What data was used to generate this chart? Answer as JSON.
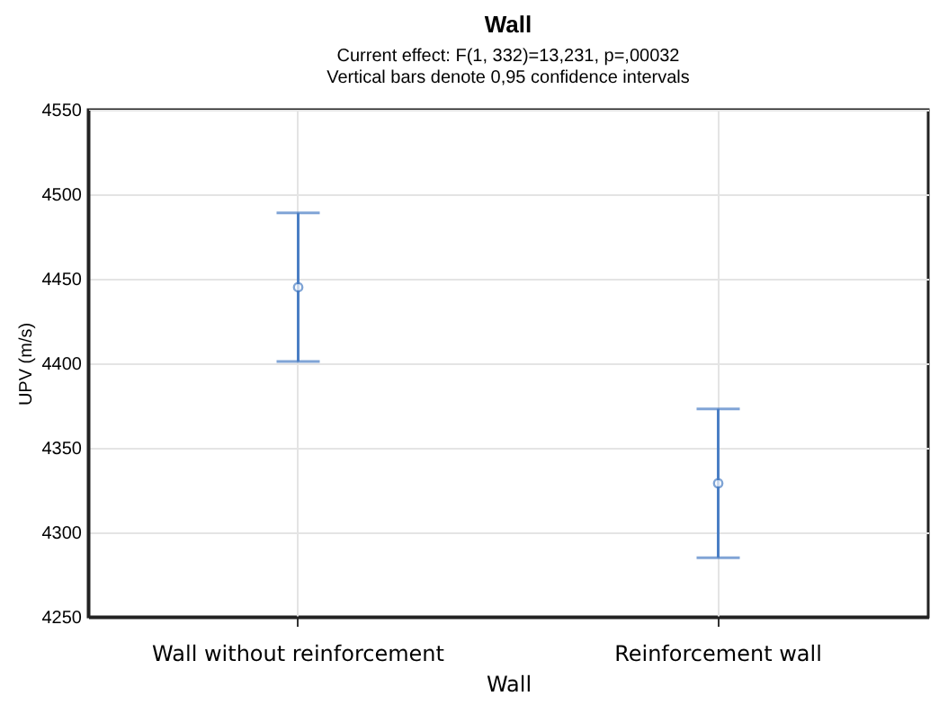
{
  "chart_data": {
    "type": "scatter",
    "title": "Wall",
    "subtitle": "Current effect: F(1, 332)=13,231, p=,00032\nVertical bars denote 0,95 confidence intervals",
    "xlabel": "Wall",
    "ylabel": "UPV (m/s)",
    "categories": [
      "Wall without reinforcement",
      "Reinforcement wall"
    ],
    "series": [
      {
        "color": "#4a7ec4",
        "values": [
          4445,
          4329
        ],
        "errors": [
          44,
          44
        ]
      }
    ],
    "ylim": [
      4250,
      4550
    ],
    "yticks": [
      4250,
      4300,
      4350,
      4400,
      4450,
      4500,
      4550
    ],
    "grid": true,
    "marker": "circle"
  }
}
